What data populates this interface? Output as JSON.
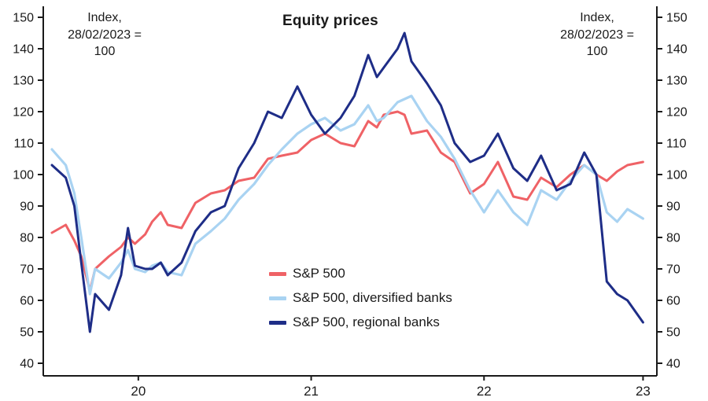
{
  "title": "Equity prices",
  "annotations": {
    "left_index_note": "Index, 28/02/2023 = 100",
    "right_index_note": "Index, 28/02/2023 = 100"
  },
  "chart_data": {
    "type": "line",
    "title": "Equity prices",
    "index_note": "Index, 28/02/2023 = 100",
    "xlabel": "",
    "ylabel": "Index, 28/02/2023 = 100",
    "x_range": [
      2019.95,
      2023.5
    ],
    "y_range": [
      40,
      150
    ],
    "y_ticks": [
      40,
      50,
      60,
      70,
      80,
      90,
      100,
      110,
      120,
      130,
      140,
      150
    ],
    "x_ticks": [
      {
        "label": "20",
        "x": 2020.5
      },
      {
        "label": "21",
        "x": 2021.5
      },
      {
        "label": "22",
        "x": 2022.5
      },
      {
        "label": "23",
        "x": 2023.42
      }
    ],
    "grid": false,
    "legend_position": "inside-bottom-center",
    "x": [
      2020.0,
      2020.08,
      2020.13,
      2020.17,
      2020.22,
      2020.25,
      2020.33,
      2020.4,
      2020.44,
      2020.48,
      2020.54,
      2020.58,
      2020.63,
      2020.67,
      2020.75,
      2020.83,
      2020.92,
      2021.0,
      2021.08,
      2021.17,
      2021.25,
      2021.33,
      2021.42,
      2021.5,
      2021.58,
      2021.67,
      2021.75,
      2021.83,
      2021.88,
      2021.92,
      2022.0,
      2022.04,
      2022.08,
      2022.17,
      2022.25,
      2022.33,
      2022.42,
      2022.5,
      2022.58,
      2022.67,
      2022.75,
      2022.83,
      2022.92,
      2023.0,
      2023.08,
      2023.15,
      2023.21,
      2023.27,
      2023.33,
      2023.42
    ],
    "series": [
      {
        "name": "S&P 500",
        "color": "#ef6266",
        "values": [
          81.5,
          84,
          79,
          74,
          63,
          70,
          74,
          77,
          80,
          78,
          81,
          85,
          88,
          84,
          83,
          91,
          94,
          95,
          98,
          99,
          105,
          106,
          107,
          111,
          113,
          110,
          109,
          117,
          115,
          119,
          120,
          119,
          113,
          114,
          107,
          104,
          94,
          97,
          104,
          93,
          92,
          99,
          96,
          100,
          103,
          100,
          98,
          101,
          103,
          104
        ]
      },
      {
        "name": "S&P 500, diversified banks",
        "color": "#a9d3f2",
        "values": [
          108,
          103,
          94,
          80,
          62,
          70,
          67,
          72,
          76,
          70,
          69,
          71,
          72,
          69,
          68,
          78,
          82,
          86,
          92,
          97,
          103,
          108,
          113,
          116,
          118,
          114,
          116,
          122,
          117,
          118,
          123,
          124,
          125,
          117,
          112,
          105,
          95,
          88,
          95,
          88,
          84,
          95,
          92,
          98,
          103,
          100,
          88,
          85,
          89,
          86
        ]
      },
      {
        "name": "S&P 500, regional banks",
        "color": "#1e2d87",
        "values": [
          103,
          99,
          90,
          72,
          50,
          62,
          57,
          68,
          83,
          71,
          70,
          70,
          72,
          68,
          72,
          82,
          88,
          90,
          102,
          110,
          120,
          118,
          128,
          119,
          113,
          118,
          125,
          138,
          131,
          134,
          140,
          145,
          136,
          129,
          122,
          110,
          104,
          106,
          113,
          102,
          98,
          106,
          95,
          97,
          107,
          100,
          66,
          62,
          60,
          53
        ]
      }
    ]
  }
}
